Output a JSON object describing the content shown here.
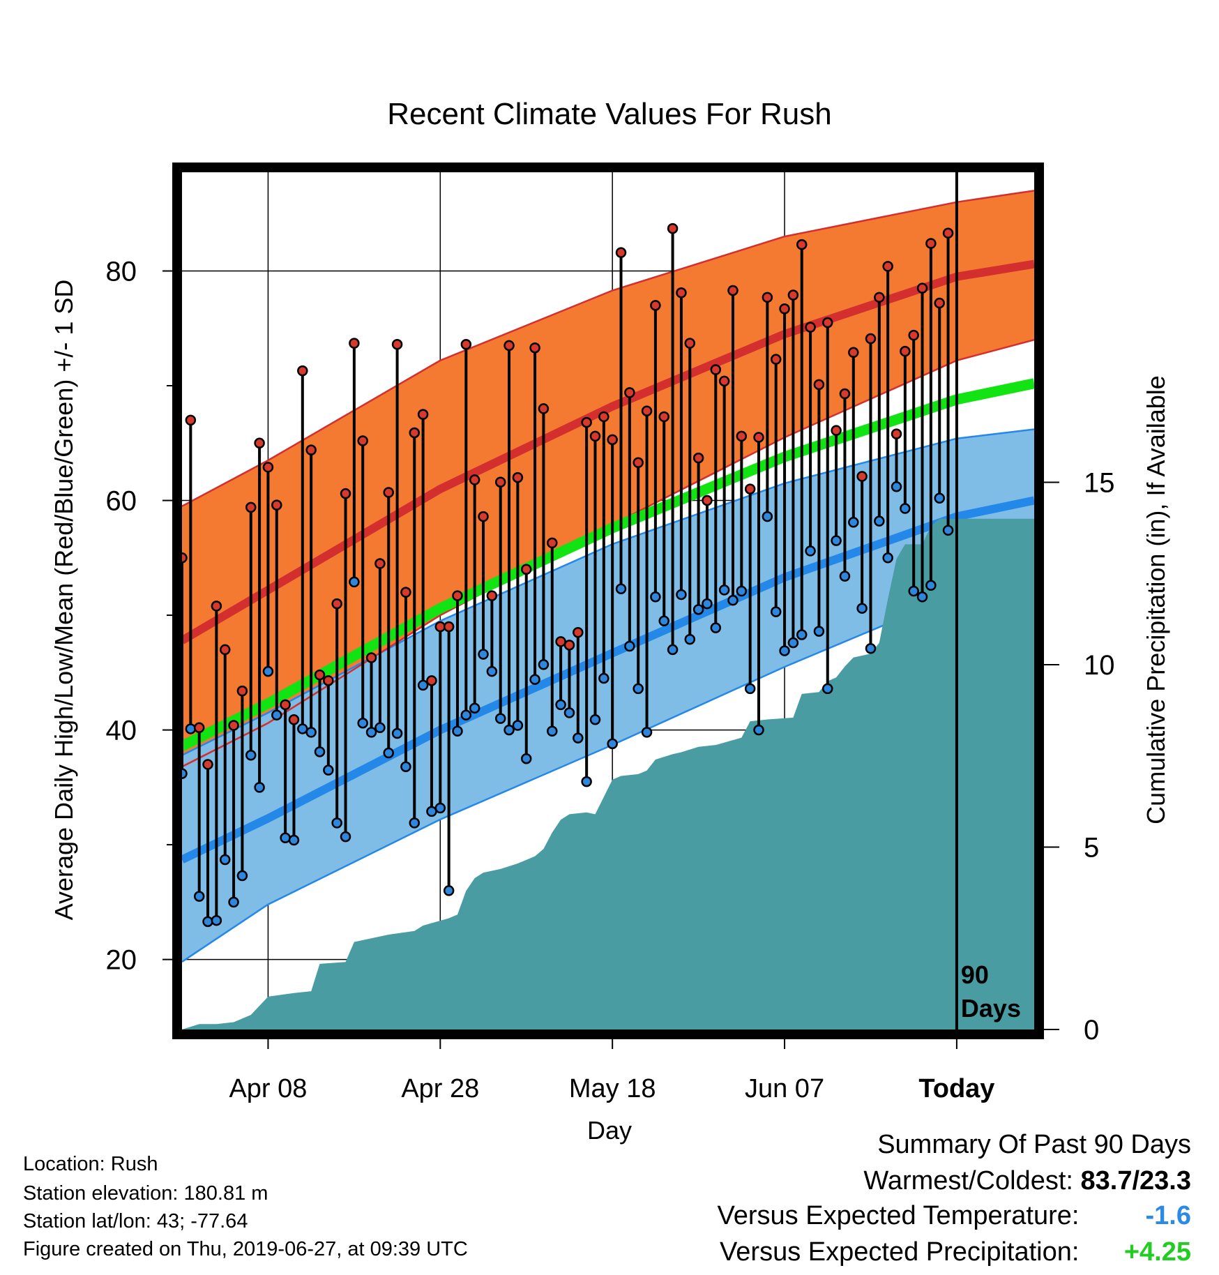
{
  "chart_data": {
    "type": "line",
    "title": "Recent Climate Values For Rush",
    "xlabel": "Day",
    "ylabel": "Average Daily High/Low/Mean (Red/Blue/Green) +/- 1 SD",
    "y2label": "Cumulative Precipitation (in), If Available",
    "x_range": [
      -90,
      9
    ],
    "x_tick_values": [
      -80,
      -60,
      -40,
      -20,
      0
    ],
    "x_tick_labels": [
      "Apr 08",
      "Apr 28",
      "May 18",
      "Jun 07",
      "Today"
    ],
    "ylim": [
      13.9,
      88.6
    ],
    "y_ticks": [
      20,
      40,
      60,
      80
    ],
    "y2lim": [
      0,
      23.5
    ],
    "y2_ticks": [
      0,
      5,
      10,
      15
    ],
    "grid": true,
    "today_annotation": "90\nDays",
    "normals": {
      "high_mean": [
        [
          -90,
          47.8
        ],
        [
          -80,
          52.2
        ],
        [
          -60,
          61.0
        ],
        [
          -40,
          68.2
        ],
        [
          -20,
          74.5
        ],
        [
          0,
          79.5
        ],
        [
          9,
          80.6
        ]
      ],
      "high_upper": [
        [
          -90,
          59.5
        ],
        [
          -80,
          63.5
        ],
        [
          -60,
          72.2
        ],
        [
          -40,
          78.3
        ],
        [
          -20,
          83.0
        ],
        [
          0,
          86.0
        ],
        [
          9,
          87.0
        ]
      ],
      "high_lower": [
        [
          -90,
          36.8
        ],
        [
          -80,
          40.6
        ],
        [
          -60,
          50.0
        ],
        [
          -40,
          57.9
        ],
        [
          -20,
          65.5
        ],
        [
          0,
          72.2
        ],
        [
          9,
          74.0
        ]
      ],
      "mean": [
        [
          -90,
          38.6
        ],
        [
          -80,
          42.3
        ],
        [
          -60,
          50.6
        ],
        [
          -40,
          57.6
        ],
        [
          -20,
          63.8
        ],
        [
          0,
          68.8
        ],
        [
          9,
          70.2
        ]
      ],
      "low_mean": [
        [
          -90,
          28.7
        ],
        [
          -80,
          32.3
        ],
        [
          -60,
          40.0
        ],
        [
          -40,
          46.7
        ],
        [
          -20,
          53.3
        ],
        [
          0,
          58.6
        ],
        [
          9,
          60.0
        ]
      ],
      "low_upper": [
        [
          -90,
          37.8
        ],
        [
          -80,
          41.5
        ],
        [
          -60,
          49.5
        ],
        [
          -40,
          56.2
        ],
        [
          -20,
          61.5
        ],
        [
          0,
          65.4
        ],
        [
          9,
          66.2
        ]
      ],
      "low_lower": [
        [
          -90,
          19.8
        ],
        [
          -80,
          24.8
        ],
        [
          -60,
          32.2
        ],
        [
          -40,
          38.7
        ],
        [
          -20,
          45.5
        ],
        [
          0,
          51.8
        ],
        [
          9,
          53.6
        ]
      ]
    },
    "series": [
      {
        "name": "High",
        "x": [
          -90,
          -89,
          -88,
          -87,
          -86,
          -85,
          -84,
          -83,
          -82,
          -81,
          -80,
          -79,
          -78,
          -77,
          -76,
          -75,
          -74,
          -73,
          -72,
          -71,
          -70,
          -69,
          -68,
          -67,
          -66,
          -65,
          -64,
          -63,
          -62,
          -61,
          -60,
          -59,
          -58,
          -57,
          -56,
          -55,
          -54,
          -53,
          -52,
          -51,
          -50,
          -49,
          -48,
          -47,
          -46,
          -45,
          -44,
          -43,
          -42,
          -41,
          -40,
          -39,
          -38,
          -37,
          -36,
          -35,
          -34,
          -33,
          -32,
          -31,
          -30,
          -29,
          -28,
          -27,
          -26,
          -25,
          -24,
          -23,
          -22,
          -21,
          -20,
          -19,
          -18,
          -17,
          -16,
          -15,
          -14,
          -13,
          -12,
          -11,
          -10,
          -9,
          -8,
          -7,
          -6,
          -5,
          -4,
          -3,
          -2,
          -1
        ],
        "values": [
          55.0,
          67.0,
          40.2,
          37.0,
          50.8,
          47.0,
          40.4,
          43.4,
          59.4,
          65.0,
          62.9,
          59.6,
          42.2,
          40.9,
          71.3,
          64.4,
          44.8,
          44.3,
          51.0,
          60.6,
          73.7,
          65.2,
          46.3,
          54.5,
          60.7,
          73.6,
          52.0,
          65.9,
          67.5,
          44.3,
          49.0,
          49.0,
          51.7,
          73.6,
          61.8,
          58.6,
          51.7,
          61.6,
          73.5,
          62.0,
          54.0,
          73.3,
          68.0,
          56.3,
          47.7,
          47.4,
          48.5,
          66.8,
          65.6,
          67.3,
          65.3,
          81.6,
          69.4,
          63.3,
          67.8,
          77.0,
          67.3,
          83.7,
          78.1,
          73.7,
          63.7,
          60.0,
          71.4,
          70.4,
          78.3,
          65.6,
          61.0,
          65.5,
          77.7,
          72.3,
          76.7,
          77.9,
          82.3,
          75.1,
          70.1,
          75.5,
          66.1,
          69.3,
          72.9,
          62.1,
          74.1,
          77.7,
          80.4,
          65.8,
          73.0,
          74.4,
          78.5,
          82.4,
          77.2,
          83.3
        ]
      },
      {
        "name": "Low",
        "x": [
          -90,
          -89,
          -88,
          -87,
          -86,
          -85,
          -84,
          -83,
          -82,
          -81,
          -80,
          -79,
          -78,
          -77,
          -76,
          -75,
          -74,
          -73,
          -72,
          -71,
          -70,
          -69,
          -68,
          -67,
          -66,
          -65,
          -64,
          -63,
          -62,
          -61,
          -60,
          -59,
          -58,
          -57,
          -56,
          -55,
          -54,
          -53,
          -52,
          -51,
          -50,
          -49,
          -48,
          -47,
          -46,
          -45,
          -44,
          -43,
          -42,
          -41,
          -40,
          -39,
          -38,
          -37,
          -36,
          -35,
          -34,
          -33,
          -32,
          -31,
          -30,
          -29,
          -28,
          -27,
          -26,
          -25,
          -24,
          -23,
          -22,
          -21,
          -20,
          -19,
          -18,
          -17,
          -16,
          -15,
          -14,
          -13,
          -12,
          -11,
          -10,
          -9,
          -8,
          -7,
          -6,
          -5,
          -4,
          -3,
          -2,
          -1
        ],
        "values": [
          36.2,
          40.1,
          25.5,
          23.3,
          23.4,
          28.7,
          25.0,
          27.3,
          37.8,
          35.0,
          45.1,
          41.3,
          30.6,
          30.4,
          40.1,
          39.8,
          38.1,
          36.5,
          31.9,
          30.7,
          52.9,
          40.6,
          39.8,
          40.2,
          38.0,
          39.7,
          36.8,
          31.9,
          43.9,
          32.9,
          33.2,
          26.0,
          39.9,
          41.3,
          41.9,
          46.6,
          45.1,
          41.0,
          40.0,
          40.4,
          37.5,
          44.4,
          45.7,
          39.9,
          42.2,
          41.5,
          39.3,
          35.5,
          40.9,
          44.5,
          38.8,
          52.3,
          47.3,
          43.6,
          39.8,
          51.6,
          49.5,
          47.0,
          51.8,
          47.9,
          50.5,
          51.0,
          48.9,
          52.2,
          51.3,
          52.1,
          43.6,
          40.0,
          58.6,
          50.3,
          46.9,
          47.6,
          48.3,
          55.6,
          48.6,
          43.6,
          56.5,
          53.4,
          58.1,
          50.6,
          47.1,
          58.2,
          55.0,
          61.2,
          59.3,
          52.1,
          51.6,
          52.6,
          60.2,
          57.4
        ]
      },
      {
        "name": "Cumulative Precipitation",
        "x": [
          -90,
          -88,
          -86,
          -84,
          -82,
          -80,
          -77,
          -75,
          -74,
          -71,
          -70,
          -67,
          -66,
          -63,
          -62,
          -59,
          -58,
          -57,
          -56,
          -55,
          -53,
          -51,
          -49,
          -48,
          -47,
          -46,
          -45,
          -43,
          -42,
          -40,
          -39,
          -37,
          -36,
          -35,
          -33,
          -32,
          -30,
          -28,
          -25,
          -24,
          -22,
          -19,
          -18,
          -16,
          -15,
          -14,
          -13,
          -12,
          -10,
          -9,
          -8,
          -7,
          -6,
          -4,
          -3,
          -2,
          -1,
          9
        ],
        "values": [
          0.0,
          0.15,
          0.15,
          0.2,
          0.4,
          0.9,
          1.0,
          1.05,
          1.8,
          1.85,
          2.4,
          2.55,
          2.6,
          2.7,
          2.85,
          3.05,
          3.15,
          3.8,
          4.15,
          4.3,
          4.4,
          4.55,
          4.75,
          4.95,
          5.4,
          5.75,
          5.9,
          5.95,
          5.9,
          6.85,
          6.95,
          7.0,
          7.1,
          7.4,
          7.55,
          7.6,
          7.75,
          7.8,
          8.0,
          8.45,
          8.5,
          8.55,
          9.2,
          9.25,
          9.55,
          9.65,
          9.95,
          10.2,
          10.3,
          10.6,
          11.8,
          12.9,
          13.3,
          13.3,
          13.8,
          14.0,
          14.0,
          14.0
        ]
      }
    ]
  },
  "info": {
    "location": "Location: Rush",
    "elevation": "Station elevation: 180.81 m",
    "latlon": "Station lat/lon: 43; -77.64",
    "created": "Figure created on Thu, 2019-06-27, at 09:39 UTC"
  },
  "summary": {
    "heading": "Summary Of Past 90 Days",
    "warmest_label": "Warmest/Coldest:",
    "warmest_value": "83.7/23.3",
    "temp_label": "Versus Expected Temperature:",
    "temp_value": "-1.6",
    "precip_label": "Versus Expected Precipitation:",
    "precip_value": "+4.25"
  },
  "colors": {
    "high_band": "#f47a32",
    "high_line": "#d32f2f",
    "mean_line": "#12e312",
    "low_band": "#7fbde6",
    "low_line": "#2388e8",
    "precip_fill": "#4a9ca3",
    "high_dot": "#d63a2c",
    "low_dot": "#2f86dd",
    "temp_anomaly": "#2b8ae6",
    "precip_anomaly": "#22cc22"
  }
}
